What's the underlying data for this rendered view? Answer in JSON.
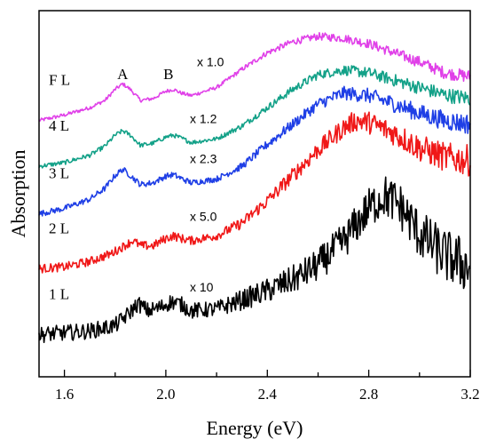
{
  "chart_data": {
    "type": "line",
    "title": "",
    "xlabel": "Energy (eV)",
    "ylabel": "Absorption",
    "xlim": [
      1.5,
      3.2
    ],
    "ylim": [
      0,
      1
    ],
    "xticks": [
      1.6,
      2.0,
      2.4,
      2.8,
      3.2
    ],
    "xtick_labels": [
      "1.6",
      "2.0",
      "2.4",
      "2.8",
      "3.2"
    ],
    "yticks_shown": false,
    "grid": false,
    "legend": "none",
    "peak_labels": [
      {
        "text": "A",
        "x": 1.83
      },
      {
        "text": "B",
        "x": 2.01
      }
    ],
    "series": [
      {
        "name": "F L",
        "scale_label": "x 1.0",
        "color": "#e040e8",
        "noise": 0.005,
        "x": [
          1.5,
          1.6,
          1.7,
          1.76,
          1.8,
          1.83,
          1.86,
          1.9,
          1.95,
          2.0,
          2.03,
          2.06,
          2.1,
          2.2,
          2.3,
          2.4,
          2.5,
          2.6,
          2.7,
          2.8,
          2.9,
          3.0,
          3.1,
          3.2
        ],
        "y": [
          0.7,
          0.715,
          0.735,
          0.755,
          0.785,
          0.8,
          0.785,
          0.755,
          0.76,
          0.78,
          0.785,
          0.775,
          0.768,
          0.79,
          0.84,
          0.885,
          0.915,
          0.93,
          0.925,
          0.91,
          0.885,
          0.86,
          0.83,
          0.82
        ]
      },
      {
        "name": "4 L",
        "scale_label": "x 1.2",
        "color": "#13a188",
        "noise": 0.006,
        "x": [
          1.5,
          1.6,
          1.7,
          1.76,
          1.8,
          1.83,
          1.86,
          1.9,
          1.95,
          2.0,
          2.03,
          2.06,
          2.1,
          2.2,
          2.3,
          2.4,
          2.5,
          2.6,
          2.7,
          2.8,
          2.9,
          3.0,
          3.1,
          3.2
        ],
        "y": [
          0.575,
          0.585,
          0.605,
          0.63,
          0.66,
          0.672,
          0.66,
          0.632,
          0.638,
          0.655,
          0.66,
          0.652,
          0.64,
          0.65,
          0.685,
          0.735,
          0.785,
          0.825,
          0.838,
          0.83,
          0.81,
          0.79,
          0.77,
          0.76
        ]
      },
      {
        "name": "3 L",
        "scale_label": "x 2.3",
        "color": "#1f3fe6",
        "noise": 0.008,
        "x": [
          1.5,
          1.6,
          1.7,
          1.76,
          1.8,
          1.83,
          1.86,
          1.9,
          1.95,
          2.0,
          2.03,
          2.06,
          2.1,
          2.2,
          2.3,
          2.4,
          2.5,
          2.6,
          2.7,
          2.8,
          2.9,
          3.0,
          3.1,
          3.2
        ],
        "y": [
          0.445,
          0.46,
          0.485,
          0.515,
          0.55,
          0.567,
          0.55,
          0.525,
          0.53,
          0.548,
          0.552,
          0.542,
          0.53,
          0.54,
          0.575,
          0.635,
          0.69,
          0.745,
          0.775,
          0.768,
          0.745,
          0.72,
          0.7,
          0.69
        ]
      },
      {
        "name": "2 L",
        "scale_label": "x 5.0",
        "color": "#f01818",
        "noise": 0.012,
        "x": [
          1.5,
          1.6,
          1.7,
          1.78,
          1.83,
          1.87,
          1.9,
          1.95,
          2.0,
          2.03,
          2.06,
          2.1,
          2.2,
          2.3,
          2.4,
          2.5,
          2.6,
          2.7,
          2.75,
          2.8,
          2.9,
          3.0,
          3.1,
          3.2
        ],
        "y": [
          0.295,
          0.3,
          0.315,
          0.335,
          0.355,
          0.372,
          0.358,
          0.358,
          0.378,
          0.385,
          0.378,
          0.372,
          0.385,
          0.42,
          0.48,
          0.55,
          0.62,
          0.68,
          0.7,
          0.695,
          0.665,
          0.625,
          0.6,
          0.59
        ]
      },
      {
        "name": "1 L",
        "scale_label": "x 10",
        "color": "#000000",
        "noise": 0.022,
        "x": [
          1.5,
          1.6,
          1.7,
          1.8,
          1.85,
          1.89,
          1.93,
          1.98,
          2.02,
          2.06,
          2.1,
          2.2,
          2.3,
          2.4,
          2.5,
          2.6,
          2.7,
          2.8,
          2.86,
          2.92,
          3.0,
          3.1,
          3.2
        ],
        "y": [
          0.115,
          0.12,
          0.125,
          0.14,
          0.17,
          0.2,
          0.18,
          0.19,
          0.205,
          0.198,
          0.18,
          0.185,
          0.21,
          0.235,
          0.265,
          0.305,
          0.37,
          0.46,
          0.495,
          0.47,
          0.39,
          0.33,
          0.3
        ]
      }
    ]
  }
}
